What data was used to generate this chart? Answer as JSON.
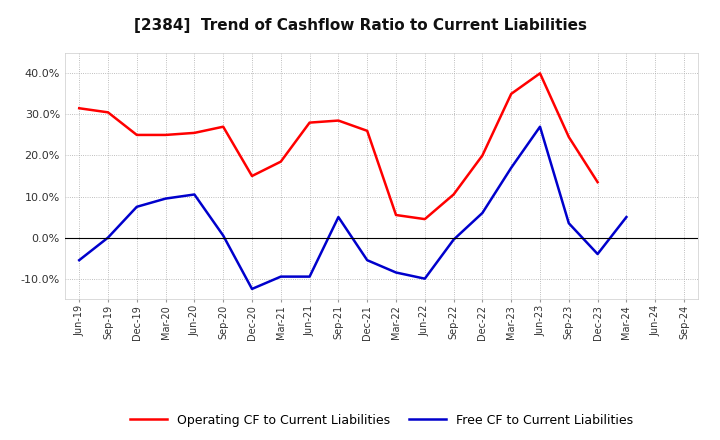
{
  "title": "[2384]  Trend of Cashflow Ratio to Current Liabilities",
  "x_labels": [
    "Jun-19",
    "Sep-19",
    "Dec-19",
    "Mar-20",
    "Jun-20",
    "Sep-20",
    "Dec-20",
    "Mar-21",
    "Jun-21",
    "Sep-21",
    "Dec-21",
    "Mar-22",
    "Jun-22",
    "Sep-22",
    "Dec-22",
    "Mar-23",
    "Jun-23",
    "Sep-23",
    "Dec-23",
    "Mar-24",
    "Jun-24",
    "Sep-24"
  ],
  "operating_cf": [
    31.5,
    30.5,
    25.0,
    25.0,
    25.5,
    27.0,
    15.0,
    18.5,
    28.0,
    28.5,
    26.0,
    5.5,
    4.5,
    10.5,
    20.0,
    35.0,
    40.0,
    24.5,
    13.5,
    null,
    null,
    null
  ],
  "free_cf": [
    -5.5,
    0.0,
    7.5,
    9.5,
    10.5,
    0.5,
    -12.5,
    -9.5,
    -9.5,
    5.0,
    -5.5,
    -8.5,
    -10.0,
    -0.5,
    6.0,
    17.0,
    27.0,
    3.5,
    -4.0,
    5.0,
    null,
    null
  ],
  "ylim": [
    -15,
    45
  ],
  "yticks": [
    -10,
    0,
    10,
    20,
    30,
    40
  ],
  "operating_color": "#ff0000",
  "free_color": "#0000cc",
  "background_color": "#ffffff",
  "grid_color": "#aaaaaa",
  "legend_operating": "Operating CF to Current Liabilities",
  "legend_free": "Free CF to Current Liabilities"
}
